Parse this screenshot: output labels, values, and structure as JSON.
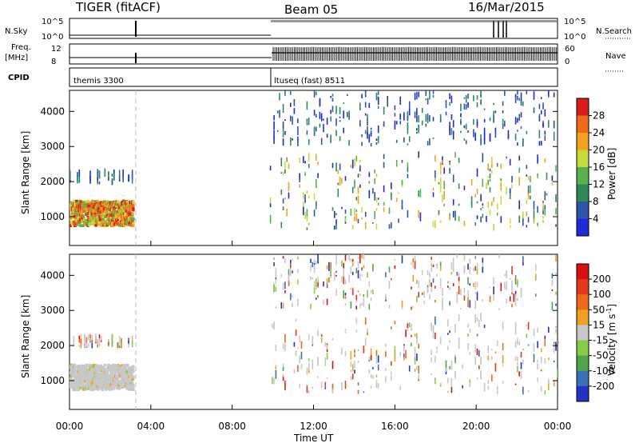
{
  "header": {
    "radar": "TIGER (fitACF)",
    "beam": "Beam 05",
    "date": "16/Mar/2015"
  },
  "status_panels": {
    "nsky_label": "N.Sky",
    "nsky_ticks": [
      "10^5",
      "10^0"
    ],
    "nsearch_label": "N.Search",
    "nsearch_ticks": [
      "10^5",
      "10^0"
    ],
    "freq_label_1": "Freq.",
    "freq_label_2": "[MHz]",
    "freq_ticks": [
      "12",
      "8"
    ],
    "nave_label": "Nave",
    "nave_ticks": [
      "60",
      "0"
    ],
    "cpid_label": "CPID",
    "cpid_segments": [
      {
        "name": "themis 3300",
        "start_hour": 0.0
      },
      {
        "name": "ltuseq (fast) 8511",
        "start_hour": 9.83
      }
    ]
  },
  "colors": {
    "power": [
      "#1f2bd9",
      "#2f55a8",
      "#2e8a5b",
      "#56b24a",
      "#c9d93b",
      "#f2a21e",
      "#ef6a17",
      "#d91c1c"
    ],
    "velocity": [
      "#2233c8",
      "#3b6fb9",
      "#4fa64a",
      "#88cc44",
      "#c8c8c8",
      "#f0a020",
      "#ef6a17",
      "#e23a1a",
      "#d81010"
    ]
  },
  "chart_data": [
    {
      "type": "heatmap",
      "name": "power",
      "title": "",
      "xlabel": "",
      "ylabel": "Slant Range [km]",
      "x_ticks": [
        "00:00",
        "04:00",
        "08:00",
        "12:00",
        "16:00",
        "20:00",
        "00:00"
      ],
      "xlim_hours": [
        0,
        24
      ],
      "ylim_km": [
        180,
        4600
      ],
      "y_ticks": [
        1000,
        2000,
        3000,
        4000
      ],
      "colorbar": {
        "label": "Power [dB]",
        "ticks": [
          "28",
          "24",
          "20",
          "16",
          "12",
          "8",
          "4"
        ],
        "range": [
          0,
          30
        ]
      },
      "regions": [
        {
          "hours": [
            0.0,
            3.1
          ],
          "range_km": [
            700,
            1400
          ],
          "level": "high"
        },
        {
          "hours": [
            0.0,
            3.1
          ],
          "range_km": [
            1900,
            2150
          ],
          "level": "low"
        },
        {
          "hours": [
            9.85,
            24.0
          ],
          "range_km": [
            600,
            2700
          ],
          "level": "mixed"
        },
        {
          "hours": [
            9.85,
            24.0
          ],
          "range_km": [
            3000,
            4500
          ],
          "level": "low"
        }
      ],
      "data_gap_hours": [
        3.1,
        9.85
      ]
    },
    {
      "type": "heatmap",
      "name": "velocity",
      "title": "",
      "xlabel": "Time UT",
      "ylabel": "Slant Range [km]",
      "x_ticks": [
        "00:00",
        "04:00",
        "08:00",
        "12:00",
        "16:00",
        "20:00",
        "00:00"
      ],
      "xlim_hours": [
        0,
        24
      ],
      "ylim_km": [
        180,
        4600
      ],
      "y_ticks": [
        1000,
        2000,
        3000,
        4000
      ],
      "colorbar": {
        "label": "Velocity [m s",
        "label_sup": "-1",
        "label_end": "]",
        "ticks": [
          "200",
          "100",
          "50",
          "15",
          "-15",
          "-50",
          "-100",
          "-200"
        ],
        "range": [
          -250,
          250
        ]
      },
      "regions": [
        {
          "hours": [
            0.0,
            3.1
          ],
          "range_km": [
            700,
            1400
          ],
          "level": "near-zero"
        },
        {
          "hours": [
            0.0,
            3.1
          ],
          "range_km": [
            1900,
            2150
          ],
          "level": "mixed"
        },
        {
          "hours": [
            9.85,
            24.0
          ],
          "range_km": [
            600,
            2700
          ],
          "level": "mixed"
        },
        {
          "hours": [
            9.85,
            24.0
          ],
          "range_km": [
            3000,
            4500
          ],
          "level": "mixed"
        }
      ],
      "data_gap_hours": [
        3.1,
        9.85
      ]
    }
  ]
}
